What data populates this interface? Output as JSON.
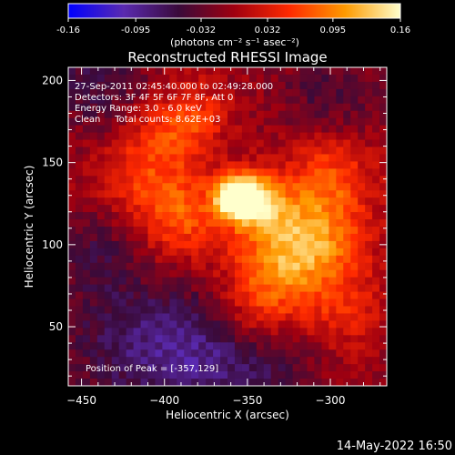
{
  "chart_data": {
    "type": "heatmap",
    "title": "Reconstructed RHESSI Image",
    "xlabel": "Heliocentric X (arcsec)",
    "ylabel": "Heliocentric Y (arcsec)",
    "xlim": [
      -458,
      -266
    ],
    "ylim": [
      14,
      208
    ],
    "x_ticks": [
      -450,
      -400,
      -350,
      -300
    ],
    "y_ticks": [
      50,
      100,
      150,
      200
    ],
    "colorbar": {
      "min": -0.16,
      "max": 0.16,
      "ticks": [
        -0.16,
        -0.095,
        -0.032,
        0.032,
        0.095,
        0.16
      ],
      "tick_labels": [
        "-0.16",
        "-0.095",
        "-0.032",
        "0.032",
        "0.095",
        "0.16"
      ],
      "unit_label": "(photons cm⁻² s⁻¹ asec⁻²)",
      "stops": [
        "#0000ff",
        "#5a2ab0",
        "#3a0a3a",
        "#a00010",
        "#ff2a00",
        "#ff9a00",
        "#ffffcc"
      ]
    },
    "annotations": {
      "time_range": "27-Sep-2011 02:45:40.000 to 02:49:28.000",
      "detectors": "Detectors: 3F 4F 5F 6F 7F 8F, Att 0",
      "energy": "Energy Range: 3.0 - 6.0 keV",
      "clean": "Clean     Total counts: 8.62E+03",
      "peak": "Position of Peak = [-357,129]"
    },
    "peak": {
      "x": -357,
      "y": 129,
      "value": 0.16
    },
    "bright_regions": [
      {
        "x": -357,
        "y": 129,
        "value": 0.16,
        "spread": 9
      },
      {
        "x": -345,
        "y": 127,
        "value": 0.12,
        "spread": 12
      },
      {
        "x": -390,
        "y": 118,
        "value": 0.08,
        "spread": 18
      },
      {
        "x": -310,
        "y": 105,
        "value": 0.09,
        "spread": 22
      },
      {
        "x": -330,
        "y": 90,
        "value": 0.07,
        "spread": 22
      },
      {
        "x": -300,
        "y": 145,
        "value": 0.06,
        "spread": 18
      },
      {
        "x": -400,
        "y": 165,
        "value": 0.06,
        "spread": 18
      },
      {
        "x": -420,
        "y": 140,
        "value": 0.04,
        "spread": 15
      },
      {
        "x": -345,
        "y": 60,
        "value": 0.05,
        "spread": 18
      },
      {
        "x": -290,
        "y": 60,
        "value": 0.04,
        "spread": 16
      },
      {
        "x": -380,
        "y": 180,
        "value": 0.04,
        "spread": 14
      }
    ],
    "dim_regions": [
      {
        "x": -440,
        "y": 200,
        "value": -0.05,
        "spread": 22
      },
      {
        "x": -420,
        "y": 40,
        "value": -0.06,
        "spread": 30
      },
      {
        "x": -370,
        "y": 30,
        "value": -0.07,
        "spread": 28
      },
      {
        "x": -300,
        "y": 190,
        "value": -0.04,
        "spread": 22
      },
      {
        "x": -445,
        "y": 95,
        "value": -0.04,
        "spread": 18
      },
      {
        "x": -330,
        "y": 25,
        "value": -0.03,
        "spread": 15
      }
    ]
  },
  "footer": {
    "date": "14-May-2022 16:50"
  }
}
